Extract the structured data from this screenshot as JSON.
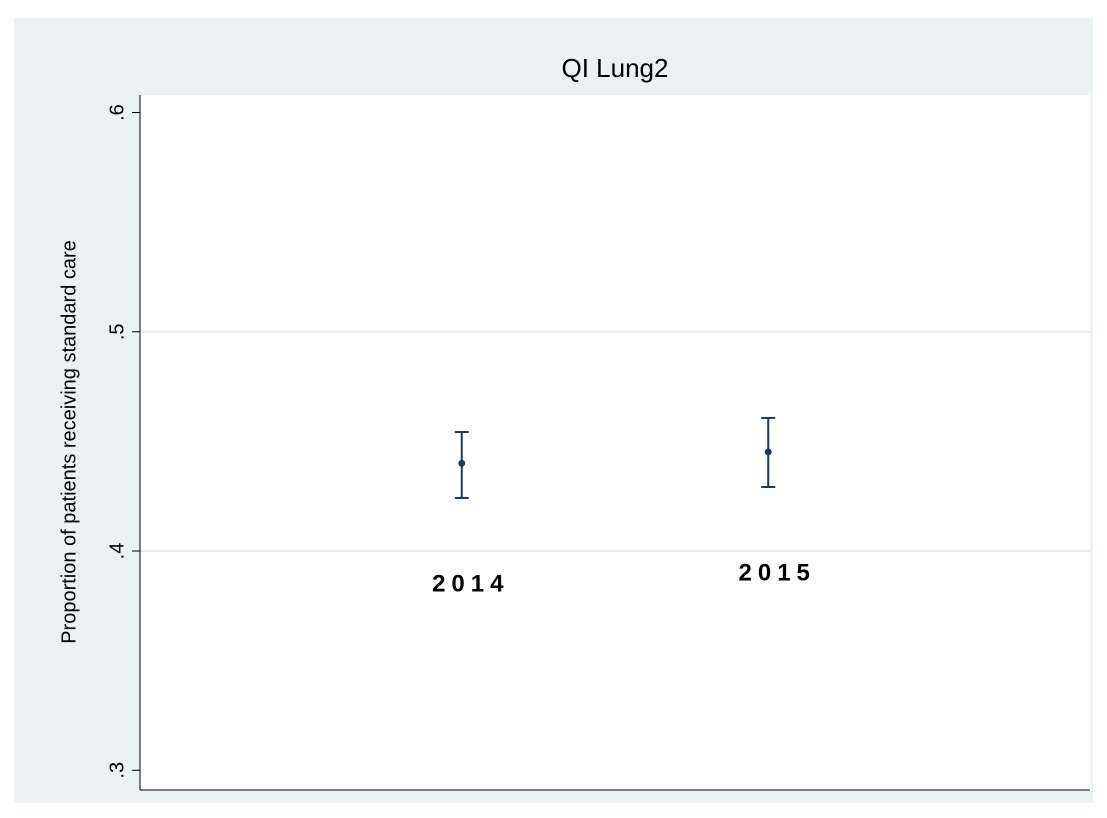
{
  "chart_data": {
    "type": "errorbar",
    "title": "QI Lung2",
    "y_label": "Proportion of patients receiving standard care",
    "x": [
      2014,
      2015
    ],
    "series": [
      {
        "color": "#1f3a5a",
        "values": [
          0.44,
          0.4452
        ],
        "ci_lower": [
          0.4242,
          0.4292
        ],
        "ci_upper": [
          0.4543,
          0.4607
        ]
      }
    ],
    "xlim": [
      2012.95,
      2016.05
    ],
    "ylim": [
      0.291,
      0.608
    ],
    "yticks": [
      {
        "value": 0.3,
        "label": ".3"
      },
      {
        "value": 0.4,
        "label": ".4"
      },
      {
        "value": 0.5,
        "label": ".5"
      },
      {
        "value": 0.6,
        "label": ".6"
      }
    ],
    "grid": true
  }
}
